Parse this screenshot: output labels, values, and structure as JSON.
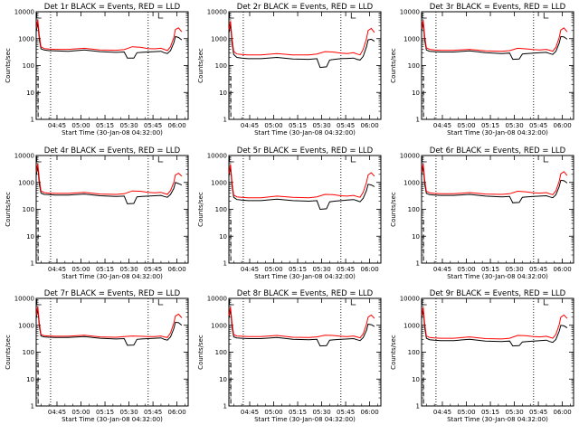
{
  "colors": {
    "events": "#000000",
    "lld": "#ff0000",
    "axes": "#000000",
    "background": "#ffffff"
  },
  "shared": {
    "type": "line",
    "ylabel": "Counts/sec",
    "xlabel": "Start Time (30-Jan-08 04:32:00)",
    "x_ticks": [
      "04:45",
      "05:00",
      "05:15",
      "05:30",
      "05:45",
      "06:00"
    ],
    "x_tick_minutes": [
      13,
      28,
      43,
      58,
      73,
      88
    ],
    "y_ticks": [
      "1",
      "10",
      "100",
      "1000",
      "10000"
    ],
    "y_tick_values": [
      1,
      10,
      100,
      1000,
      10000
    ],
    "y_scale": "log",
    "ylim": [
      1,
      10000
    ],
    "xlim_minutes": [
      0,
      95
    ],
    "vertical_dotted_lines_minutes": [
      9,
      70
    ],
    "grid": false,
    "legend": "none"
  },
  "chart_data": [
    {
      "title": "Det 1r BLACK = Events, RED = LLD",
      "series": [
        {
          "name": "BLACK = Events",
          "x": [
            0,
            1,
            2,
            3,
            5,
            8,
            12,
            20,
            30,
            40,
            50,
            55,
            57,
            61,
            63,
            66,
            70,
            74,
            78,
            80,
            82,
            84,
            86,
            87,
            89,
            91
          ],
          "y": [
            1800,
            4000,
            900,
            420,
            380,
            360,
            350,
            340,
            380,
            330,
            310,
            320,
            190,
            190,
            300,
            310,
            320,
            330,
            340,
            300,
            280,
            360,
            700,
            1200,
            1100,
            900
          ]
        },
        {
          "name": "RED = LLD",
          "x": [
            0,
            1,
            2,
            3,
            5,
            8,
            12,
            20,
            30,
            40,
            50,
            55,
            60,
            65,
            70,
            74,
            78,
            80,
            82,
            84,
            86,
            87,
            89,
            91
          ],
          "y": [
            2400,
            5000,
            1300,
            500,
            430,
            410,
            400,
            400,
            440,
            380,
            370,
            390,
            500,
            480,
            430,
            420,
            440,
            400,
            360,
            500,
            1100,
            2200,
            2500,
            1800
          ]
        }
      ]
    },
    {
      "title": "Det 2r BLACK = Events, RED = LLD",
      "series": [
        {
          "name": "BLACK = Events",
          "x": [
            0,
            1,
            2,
            3,
            5,
            8,
            12,
            20,
            30,
            40,
            50,
            55,
            57,
            61,
            63,
            66,
            70,
            74,
            78,
            80,
            82,
            84,
            86,
            87,
            89,
            91
          ],
          "y": [
            1600,
            3500,
            700,
            260,
            200,
            190,
            180,
            180,
            200,
            175,
            170,
            180,
            85,
            90,
            160,
            170,
            180,
            185,
            190,
            170,
            160,
            220,
            500,
            900,
            950,
            800
          ]
        },
        {
          "name": "RED = LLD",
          "x": [
            0,
            1,
            2,
            3,
            5,
            8,
            12,
            20,
            30,
            40,
            50,
            55,
            60,
            65,
            70,
            74,
            78,
            80,
            82,
            84,
            86,
            87,
            89,
            91
          ],
          "y": [
            2200,
            4500,
            1000,
            340,
            270,
            260,
            250,
            250,
            280,
            250,
            250,
            270,
            330,
            320,
            290,
            280,
            300,
            270,
            250,
            400,
            1000,
            2000,
            2400,
            1700
          ]
        }
      ]
    },
    {
      "title": "Det 3r BLACK = Events, RED = LLD",
      "series": [
        {
          "name": "BLACK = Events",
          "x": [
            0,
            1,
            2,
            3,
            5,
            8,
            12,
            20,
            30,
            40,
            50,
            55,
            57,
            61,
            63,
            66,
            70,
            74,
            78,
            80,
            82,
            84,
            86,
            87,
            89,
            91
          ],
          "y": [
            1800,
            4000,
            850,
            380,
            340,
            330,
            320,
            320,
            350,
            300,
            280,
            290,
            170,
            175,
            270,
            280,
            290,
            300,
            310,
            280,
            260,
            340,
            680,
            1200,
            1150,
            950
          ]
        },
        {
          "name": "RED = LLD",
          "x": [
            0,
            1,
            2,
            3,
            5,
            8,
            12,
            20,
            30,
            40,
            50,
            55,
            60,
            65,
            70,
            74,
            78,
            80,
            82,
            84,
            86,
            87,
            89,
            91
          ],
          "y": [
            2300,
            4800,
            1200,
            460,
            400,
            380,
            370,
            370,
            400,
            350,
            340,
            360,
            440,
            420,
            390,
            380,
            400,
            370,
            340,
            480,
            1100,
            2100,
            2500,
            1800
          ]
        }
      ]
    },
    {
      "title": "Det 4r BLACK = Events, RED = LLD",
      "series": [
        {
          "name": "BLACK = Events",
          "x": [
            0,
            1,
            2,
            3,
            5,
            8,
            12,
            20,
            30,
            40,
            50,
            55,
            57,
            61,
            63,
            66,
            70,
            74,
            78,
            80,
            82,
            84,
            86,
            87,
            89,
            91
          ],
          "y": [
            1800,
            4000,
            850,
            400,
            360,
            350,
            340,
            340,
            370,
            320,
            300,
            310,
            160,
            165,
            290,
            300,
            310,
            320,
            330,
            300,
            280,
            360,
            600,
            1000,
            900,
            800
          ]
        },
        {
          "name": "RED = LLD",
          "x": [
            0,
            1,
            2,
            3,
            5,
            8,
            12,
            20,
            30,
            40,
            50,
            55,
            60,
            65,
            70,
            74,
            78,
            80,
            82,
            84,
            86,
            87,
            89,
            91
          ],
          "y": [
            2400,
            5000,
            1300,
            480,
            420,
            400,
            390,
            390,
            430,
            370,
            360,
            380,
            480,
            470,
            430,
            410,
            430,
            390,
            360,
            500,
            1000,
            1900,
            2200,
            1700
          ]
        }
      ]
    },
    {
      "title": "Det 5r BLACK = Events, RED = LLD",
      "series": [
        {
          "name": "BLACK = Events",
          "x": [
            0,
            1,
            2,
            3,
            5,
            8,
            12,
            20,
            30,
            40,
            50,
            55,
            57,
            61,
            63,
            66,
            70,
            74,
            78,
            80,
            82,
            84,
            86,
            87,
            89,
            91
          ],
          "y": [
            1700,
            3800,
            750,
            280,
            230,
            220,
            210,
            210,
            240,
            210,
            200,
            210,
            100,
            105,
            190,
            200,
            210,
            220,
            230,
            210,
            190,
            260,
            500,
            850,
            800,
            700
          ]
        },
        {
          "name": "RED = LLD",
          "x": [
            0,
            1,
            2,
            3,
            5,
            8,
            12,
            20,
            30,
            40,
            50,
            55,
            60,
            65,
            70,
            74,
            78,
            80,
            82,
            84,
            86,
            87,
            89,
            91
          ],
          "y": [
            2200,
            4600,
            1000,
            340,
            290,
            280,
            270,
            270,
            310,
            280,
            270,
            290,
            360,
            350,
            320,
            310,
            330,
            300,
            280,
            430,
            1000,
            1900,
            2300,
            1700
          ]
        }
      ]
    },
    {
      "title": "Det 6r BLACK = Events, RED = LLD",
      "series": [
        {
          "name": "BLACK = Events",
          "x": [
            0,
            1,
            2,
            3,
            5,
            8,
            12,
            20,
            30,
            40,
            50,
            55,
            57,
            61,
            63,
            66,
            70,
            74,
            78,
            80,
            82,
            84,
            86,
            87,
            89,
            91
          ],
          "y": [
            1800,
            4000,
            850,
            390,
            350,
            340,
            330,
            330,
            360,
            310,
            290,
            300,
            175,
            180,
            280,
            290,
            300,
            310,
            320,
            290,
            270,
            350,
            700,
            1200,
            1150,
            950
          ]
        },
        {
          "name": "RED = LLD",
          "x": [
            0,
            1,
            2,
            3,
            5,
            8,
            12,
            20,
            30,
            40,
            50,
            55,
            60,
            65,
            70,
            74,
            78,
            80,
            82,
            84,
            86,
            87,
            89,
            91
          ],
          "y": [
            2300,
            4900,
            1200,
            470,
            410,
            390,
            380,
            380,
            420,
            370,
            360,
            380,
            470,
            450,
            410,
            400,
            420,
            380,
            350,
            490,
            1100,
            2100,
            2500,
            1800
          ]
        }
      ]
    },
    {
      "title": "Det 7r BLACK = Events, RED = LLD",
      "series": [
        {
          "name": "BLACK = Events",
          "x": [
            0,
            1,
            2,
            3,
            5,
            8,
            12,
            20,
            30,
            40,
            50,
            55,
            57,
            61,
            63,
            66,
            70,
            74,
            78,
            80,
            82,
            84,
            86,
            87,
            89,
            91
          ],
          "y": [
            1800,
            4000,
            900,
            400,
            370,
            360,
            350,
            350,
            380,
            330,
            310,
            320,
            180,
            185,
            300,
            310,
            320,
            330,
            340,
            300,
            280,
            370,
            750,
            1300,
            1250,
            1000
          ]
        },
        {
          "name": "RED = LLD",
          "x": [
            0,
            1,
            2,
            3,
            5,
            8,
            12,
            20,
            30,
            40,
            50,
            55,
            60,
            65,
            70,
            74,
            78,
            80,
            82,
            84,
            86,
            87,
            89,
            91
          ],
          "y": [
            2300,
            4900,
            1200,
            460,
            410,
            400,
            390,
            390,
            430,
            370,
            360,
            380,
            400,
            390,
            380,
            380,
            400,
            370,
            350,
            520,
            1200,
            2200,
            2600,
            1900
          ]
        }
      ]
    },
    {
      "title": "Det 8r BLACK = Events, RED = LLD",
      "series": [
        {
          "name": "BLACK = Events",
          "x": [
            0,
            1,
            2,
            3,
            5,
            8,
            12,
            20,
            30,
            40,
            50,
            55,
            57,
            61,
            63,
            66,
            70,
            74,
            78,
            80,
            82,
            84,
            86,
            87,
            89,
            91
          ],
          "y": [
            1800,
            4000,
            850,
            370,
            340,
            330,
            320,
            320,
            350,
            300,
            290,
            300,
            170,
            175,
            280,
            290,
            300,
            310,
            320,
            290,
            270,
            350,
            650,
            1100,
            1050,
            900
          ]
        },
        {
          "name": "RED = LLD",
          "x": [
            0,
            1,
            2,
            3,
            5,
            8,
            12,
            20,
            30,
            40,
            50,
            55,
            60,
            65,
            70,
            74,
            78,
            80,
            82,
            84,
            86,
            87,
            89,
            91
          ],
          "y": [
            2300,
            4800,
            1200,
            450,
            400,
            390,
            380,
            380,
            420,
            360,
            350,
            370,
            430,
            420,
            390,
            380,
            400,
            370,
            340,
            480,
            1100,
            2000,
            2400,
            1800
          ]
        }
      ]
    },
    {
      "title": "Det 9r BLACK = Events, RED = LLD",
      "series": [
        {
          "name": "BLACK = Events",
          "x": [
            0,
            1,
            2,
            3,
            5,
            8,
            12,
            20,
            30,
            40,
            50,
            55,
            57,
            61,
            63,
            66,
            70,
            74,
            78,
            80,
            82,
            84,
            86,
            87,
            89,
            91
          ],
          "y": [
            1700,
            3800,
            800,
            330,
            290,
            280,
            270,
            270,
            300,
            260,
            250,
            260,
            170,
            175,
            240,
            250,
            260,
            270,
            280,
            250,
            230,
            300,
            600,
            1000,
            950,
            800
          ]
        },
        {
          "name": "RED = LLD",
          "x": [
            0,
            1,
            2,
            3,
            5,
            8,
            12,
            20,
            30,
            40,
            50,
            55,
            60,
            65,
            70,
            74,
            78,
            80,
            82,
            84,
            86,
            87,
            89,
            91
          ],
          "y": [
            2200,
            4600,
            1100,
            400,
            350,
            340,
            330,
            330,
            370,
            320,
            310,
            330,
            420,
            410,
            380,
            370,
            390,
            360,
            330,
            460,
            1050,
            2000,
            2400,
            1800
          ]
        }
      ]
    }
  ]
}
